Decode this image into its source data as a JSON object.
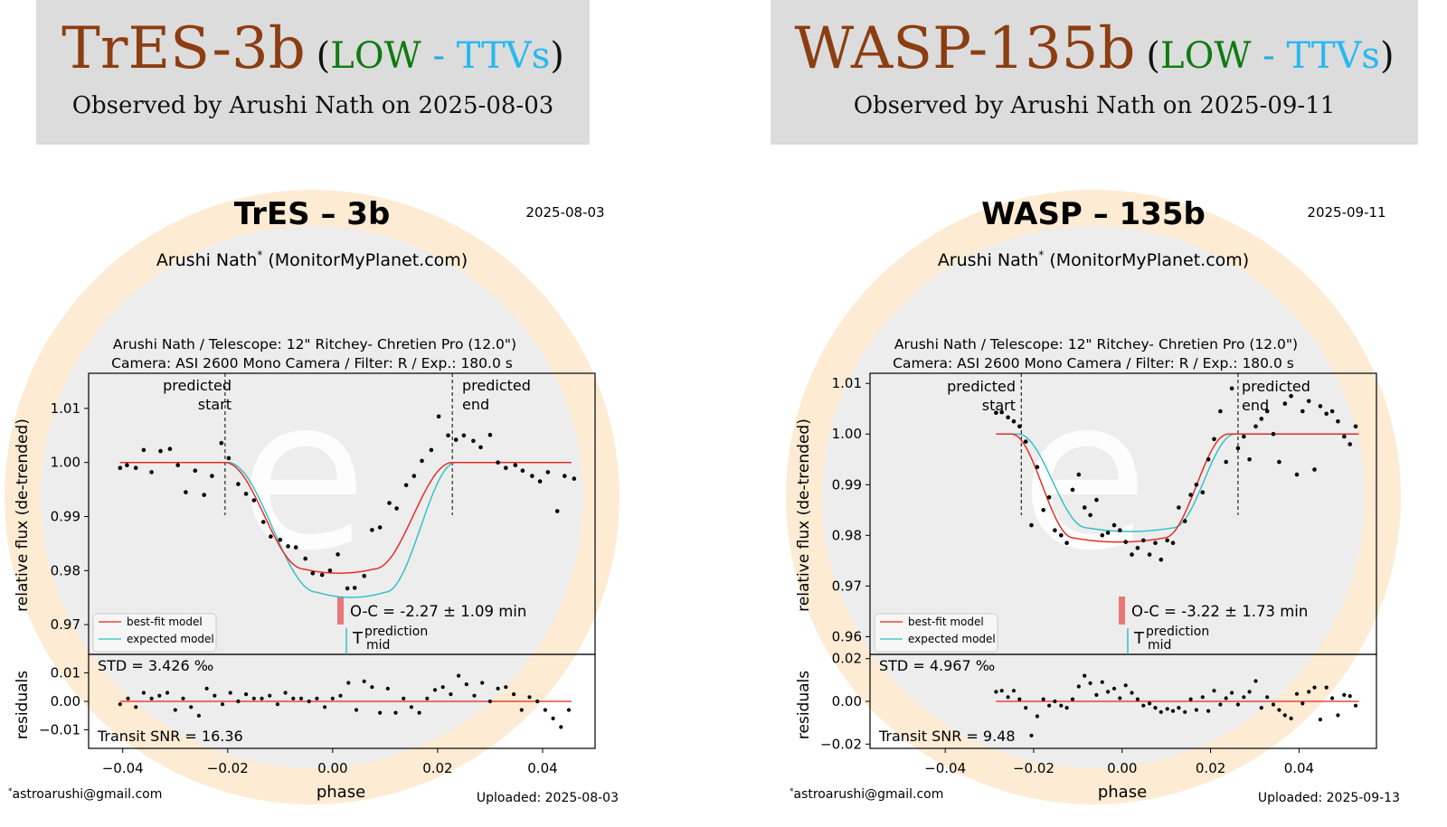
{
  "cards": [
    {
      "banner": {
        "planet": "TrES-3b",
        "open_paren": "(",
        "low": "LOW",
        "dash": " - ",
        "ttvs": "TTVs",
        "close_paren": ")",
        "observed": "Observed by Arushi Nath on 2025-08-03"
      },
      "plot": {
        "title": "TrES – 3b",
        "date": "2025-08-03",
        "observer": "Arushi Nath",
        "observer_mark": "*",
        "observer_site": " (MonitorMyPlanet.com)",
        "equipment_line1": "Arushi Nath / Telescope: 12\" Ritchey- Chretien Pro (12.0\")",
        "equipment_line2": "Camera: ASI 2600 Mono Camera / Filter: R / Exp.: 180.0 s",
        "ylabel_top": "relative flux (de-trended)",
        "ylabel_bottom": "residuals",
        "xlabel": "phase",
        "pred_start_1": "predicted",
        "pred_start_2": "start",
        "pred_end_1": "predicted",
        "pred_end_2": "end",
        "oc_text": "O-C = -2.27 ± 1.09 min",
        "tmid_T": "T",
        "tmid_sup": "prediction",
        "tmid_sub": "mid",
        "legend_best": "best-fit model",
        "legend_expected": "expected model",
        "std_text": "STD = 3.426 ‰",
        "snr_text": "Transit SNR = 16.36",
        "email_mark": "*",
        "email": "astroarushi@gmail.com",
        "uploaded": "Uploaded: 2025-08-03"
      },
      "chart_data": {
        "type": "scatter",
        "x_range": [
          -0.0465,
          0.05
        ],
        "top_y_range": [
          0.9645,
          1.0165
        ],
        "top_yticks": [
          "0.97",
          "0.98",
          "0.99",
          "1.00",
          "1.01"
        ],
        "top_ytick_values": [
          0.97,
          0.98,
          0.99,
          1.0,
          1.01
        ],
        "res_y_range": [
          -0.0165,
          0.0165
        ],
        "res_yticks": [
          "−0.01",
          "0.00",
          "0.01"
        ],
        "res_ytick_values": [
          -0.01,
          0.0,
          0.01
        ],
        "xticks": [
          "−0.04",
          "−0.02",
          "0.00",
          "0.02",
          "0.04"
        ],
        "xtick_values": [
          -0.04,
          -0.02,
          0.0,
          0.02,
          0.04
        ],
        "predicted_start": -0.0205,
        "predicted_end": 0.0228,
        "tmid_prediction": 0.0012,
        "oc_bar_x": 0.0,
        "model_range": [
          -0.0405,
          0.0455
        ],
        "best_fit": {
          "t1": -0.0205,
          "t4": 0.0228,
          "t2": -0.0055,
          "t3": 0.0079,
          "depth": 0.0197
        },
        "expected": {
          "t1": -0.02,
          "t4": 0.0235,
          "t2": -0.003,
          "t3": 0.01,
          "depth": 0.024
        },
        "points_x": [
          -0.0405,
          -0.0392,
          -0.0375,
          -0.036,
          -0.0345,
          -0.0328,
          -0.031,
          -0.0295,
          -0.028,
          -0.0262,
          -0.0245,
          -0.023,
          -0.0212,
          -0.0198,
          -0.018,
          -0.0165,
          -0.015,
          -0.0132,
          -0.0118,
          -0.01,
          -0.0085,
          -0.007,
          -0.0052,
          -0.0038,
          -0.002,
          -0.0005,
          0.001,
          0.0028,
          0.0042,
          0.006,
          0.0075,
          0.009,
          0.0108,
          0.0122,
          0.014,
          0.0155,
          0.017,
          0.0188,
          0.0202,
          0.022,
          0.0235,
          0.025,
          0.0268,
          0.0282,
          0.03,
          0.0315,
          0.033,
          0.0348,
          0.0362,
          0.038,
          0.0395,
          0.041,
          0.0428,
          0.0442,
          0.046
        ],
        "points_y": [
          0.999,
          0.9995,
          0.999,
          1.0023,
          0.9982,
          1.0021,
          1.0025,
          0.9995,
          0.9945,
          0.9985,
          0.994,
          0.9975,
          1.0036,
          1.0008,
          0.996,
          0.9942,
          0.993,
          0.989,
          0.9863,
          0.9857,
          0.9845,
          0.9843,
          0.9822,
          0.9795,
          0.9792,
          0.98,
          0.983,
          0.9767,
          0.9768,
          0.979,
          0.9875,
          0.988,
          0.9925,
          0.9915,
          0.9958,
          0.9975,
          1.0003,
          1.0023,
          1.0085,
          1.005,
          1.0042,
          1.005,
          1.004,
          1.0028,
          1.0051,
          1.0,
          0.999,
          0.9995,
          0.9985,
          0.9975,
          0.9965,
          0.9982,
          0.991,
          0.9975,
          0.997
        ],
        "residuals_x": [
          -0.0405,
          -0.039,
          -0.0375,
          -0.036,
          -0.0345,
          -0.033,
          -0.0315,
          -0.03,
          -0.0285,
          -0.027,
          -0.0255,
          -0.024,
          -0.0225,
          -0.021,
          -0.0195,
          -0.018,
          -0.0165,
          -0.015,
          -0.0135,
          -0.012,
          -0.0105,
          -0.009,
          -0.0075,
          -0.006,
          -0.0045,
          -0.003,
          -0.0015,
          0.0,
          0.0015,
          0.003,
          0.0045,
          0.006,
          0.0075,
          0.009,
          0.0105,
          0.012,
          0.0135,
          0.015,
          0.0165,
          0.018,
          0.0195,
          0.021,
          0.0225,
          0.024,
          0.0255,
          0.027,
          0.0285,
          0.03,
          0.0315,
          0.033,
          0.0345,
          0.036,
          0.0375,
          0.039,
          0.0405,
          0.042,
          0.0435,
          0.045
        ],
        "residuals_y": [
          -0.001,
          0.001,
          -0.002,
          0.003,
          0.001,
          0.002,
          0.003,
          -0.003,
          0.001,
          -0.002,
          -0.005,
          0.0045,
          0.002,
          -0.001,
          0.003,
          0.0,
          0.0025,
          0.001,
          0.001,
          0.002,
          -0.001,
          0.003,
          0.001,
          0.001,
          0.0,
          0.001,
          -0.002,
          0.001,
          0.002,
          0.0065,
          -0.003,
          0.007,
          0.005,
          -0.004,
          0.0045,
          -0.004,
          0.001,
          -0.002,
          -0.004,
          0.001,
          0.004,
          0.005,
          0.0025,
          0.009,
          0.006,
          0.002,
          0.0065,
          0.0,
          0.0045,
          0.005,
          0.0025,
          -0.003,
          0.0015,
          0.0,
          -0.003,
          -0.006,
          -0.009,
          -0.003
        ]
      }
    },
    {
      "banner": {
        "planet": "WASP-135b",
        "open_paren": "(",
        "low": "LOW",
        "dash": " - ",
        "ttvs": "TTVs",
        "close_paren": ")",
        "observed": "Observed by Arushi Nath on 2025-09-11"
      },
      "plot": {
        "title": "WASP – 135b",
        "date": "2025-09-11",
        "observer": "Arushi Nath",
        "observer_mark": "*",
        "observer_site": " (MonitorMyPlanet.com)",
        "equipment_line1": "Arushi Nath / Telescope: 12\" Ritchey- Chretien Pro (12.0\")",
        "equipment_line2": "Camera: ASI 2600 Mono Camera / Filter: R / Exp.: 180.0 s",
        "ylabel_top": "relative flux (de-trended)",
        "ylabel_bottom": "residuals",
        "xlabel": "phase",
        "pred_start_1": "predicted",
        "pred_start_2": "start",
        "pred_end_1": "predicted",
        "pred_end_2": "end",
        "oc_text": "O-C = -3.22 ± 1.73 min",
        "tmid_T": "T",
        "tmid_sup": "prediction",
        "tmid_sub": "mid",
        "legend_best": "best-fit model",
        "legend_expected": "expected model",
        "std_text": "STD = 4.967 ‰",
        "snr_text": "Transit SNR = 9.48",
        "email_mark": "*",
        "email": "astroarushi@gmail.com",
        "uploaded": "Uploaded: 2025-09-13"
      },
      "chart_data": {
        "type": "scatter",
        "x_range": [
          -0.057,
          0.0575
        ],
        "top_y_range": [
          0.9565,
          1.012
        ],
        "top_yticks": [
          "0.96",
          "0.97",
          "0.98",
          "0.99",
          "1.00",
          "1.01"
        ],
        "top_ytick_values": [
          0.96,
          0.97,
          0.98,
          0.99,
          1.0,
          1.01
        ],
        "res_y_range": [
          -0.022,
          0.022
        ],
        "res_yticks": [
          "−0.02",
          "0.00",
          "0.02"
        ],
        "res_ytick_values": [
          -0.02,
          0.0,
          0.02
        ],
        "xticks": [
          "−0.04",
          "−0.02",
          "0.00",
          "0.02",
          "0.04"
        ],
        "xtick_values": [
          -0.04,
          -0.02,
          0.0,
          0.02,
          0.04
        ],
        "predicted_start": -0.0228,
        "predicted_end": 0.0262,
        "tmid_prediction": 0.0016,
        "oc_bar_x": 0.0,
        "model_range": [
          -0.0285,
          0.0535
        ],
        "best_fit": {
          "t1": -0.025,
          "t4": 0.024,
          "t2": -0.011,
          "t3": 0.0095,
          "depth": 0.0205
        },
        "expected": {
          "t1": -0.0235,
          "t4": 0.0255,
          "t2": -0.008,
          "t3": 0.0115,
          "depth": 0.0185
        },
        "points_x": [
          -0.0285,
          -0.0272,
          -0.0258,
          -0.0245,
          -0.0232,
          -0.0218,
          -0.0205,
          -0.0192,
          -0.0178,
          -0.0165,
          -0.0152,
          -0.0138,
          -0.0125,
          -0.0112,
          -0.0098,
          -0.0085,
          -0.0072,
          -0.0058,
          -0.0045,
          -0.0032,
          -0.0018,
          -0.0005,
          0.0008,
          0.0022,
          0.0035,
          0.0048,
          0.0062,
          0.0075,
          0.0088,
          0.0102,
          0.0115,
          0.0128,
          0.0142,
          0.0155,
          0.0168,
          0.0182,
          0.0195,
          0.0208,
          0.0222,
          0.0235,
          0.0248,
          0.0262,
          0.0275,
          0.0288,
          0.0302,
          0.0315,
          0.0328,
          0.0342,
          0.0355,
          0.0368,
          0.0382,
          0.0395,
          0.0408,
          0.0422,
          0.0435,
          0.0448,
          0.0462,
          0.0475,
          0.0488,
          0.0502,
          0.0515,
          0.0528
        ],
        "points_y": [
          1.0042,
          1.0043,
          1.0033,
          1.0025,
          1.0015,
          0.9985,
          0.982,
          0.9935,
          0.985,
          0.9875,
          0.981,
          0.98,
          0.9785,
          0.989,
          0.992,
          0.9855,
          0.984,
          0.987,
          0.98,
          0.9805,
          0.982,
          0.981,
          0.9787,
          0.9762,
          0.9775,
          0.979,
          0.9762,
          0.9785,
          0.9752,
          0.979,
          0.9785,
          0.9855,
          0.9828,
          0.988,
          0.99,
          0.9885,
          0.995,
          0.999,
          1.0045,
          0.9945,
          1.009,
          0.9972,
          0.9995,
          0.995,
          1.0015,
          1.003,
          1.0045,
          1.0,
          0.9945,
          1.006,
          1.0075,
          0.992,
          1.0045,
          1.0065,
          0.993,
          1.0055,
          1.004,
          1.0045,
          1.0025,
          0.9995,
          0.998,
          1.0015
        ],
        "residuals_x": [
          -0.0285,
          -0.0272,
          -0.0258,
          -0.0245,
          -0.0232,
          -0.0218,
          -0.0205,
          -0.0192,
          -0.0178,
          -0.0165,
          -0.0152,
          -0.0138,
          -0.0125,
          -0.0112,
          -0.0098,
          -0.0085,
          -0.0072,
          -0.0058,
          -0.0045,
          -0.0032,
          -0.0018,
          -0.0005,
          0.0008,
          0.0022,
          0.0035,
          0.0048,
          0.0062,
          0.0075,
          0.0088,
          0.0102,
          0.0115,
          0.0128,
          0.0142,
          0.0155,
          0.0168,
          0.0182,
          0.0195,
          0.0208,
          0.0222,
          0.0235,
          0.0248,
          0.0262,
          0.0275,
          0.0288,
          0.0302,
          0.0315,
          0.0328,
          0.0342,
          0.0355,
          0.0368,
          0.0382,
          0.0395,
          0.0408,
          0.0422,
          0.0435,
          0.0448,
          0.0462,
          0.0475,
          0.0488,
          0.0502,
          0.0515,
          0.0528
        ],
        "residuals_y": [
          0.0045,
          0.005,
          0.002,
          0.005,
          0.001,
          -0.003,
          -0.016,
          -0.007,
          0.001,
          -0.002,
          0.0,
          -0.002,
          -0.003,
          0.001,
          0.007,
          0.012,
          0.0085,
          0.003,
          0.009,
          0.0045,
          0.006,
          0.0015,
          0.0075,
          0.004,
          0.001,
          -0.002,
          -0.001,
          -0.003,
          -0.005,
          -0.0035,
          -0.0045,
          -0.003,
          -0.005,
          0.001,
          -0.004,
          0.002,
          -0.0045,
          0.005,
          -0.0015,
          0.0015,
          0.004,
          -0.0015,
          0.002,
          0.0045,
          0.0095,
          -0.003,
          0.002,
          -0.0015,
          -0.004,
          -0.0065,
          -0.008,
          0.0035,
          -0.001,
          0.0045,
          0.0065,
          -0.0085,
          0.0065,
          0.0015,
          -0.0065,
          0.003,
          0.0025,
          -0.002
        ]
      }
    }
  ]
}
